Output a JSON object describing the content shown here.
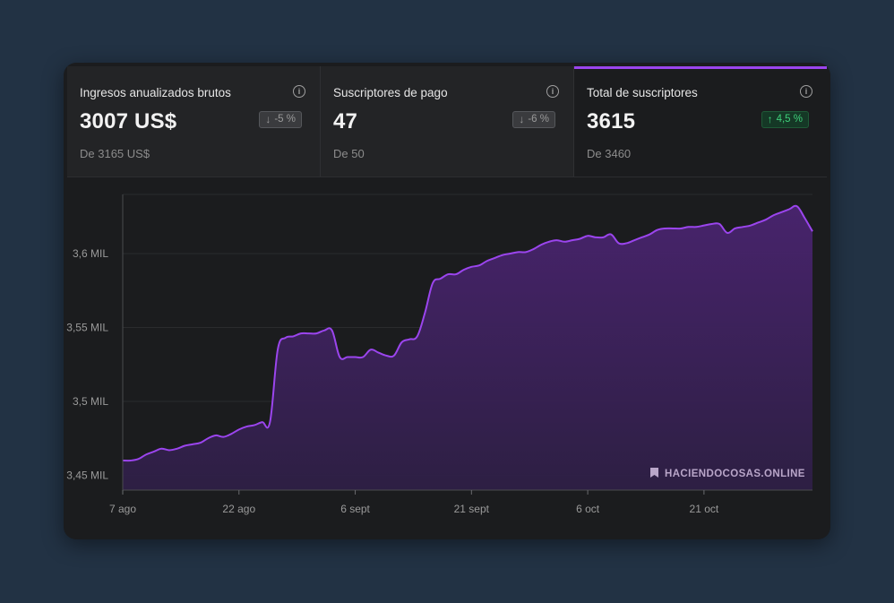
{
  "stats": [
    {
      "label": "Ingresos anualizados brutos",
      "value": "3007 US$",
      "change": "-5 %",
      "direction": "down",
      "sub": "De 3165 US$"
    },
    {
      "label": "Suscriptores de pago",
      "value": "47",
      "change": "-6 %",
      "direction": "down",
      "sub": "De 50"
    },
    {
      "label": "Total de suscriptores",
      "value": "3615",
      "change": "4,5 %",
      "direction": "up",
      "sub": "De 3460"
    }
  ],
  "watermark": "HACIENDOCOSAS.ONLINE",
  "colors": {
    "accent": "#9b45ee",
    "positive": "#3fcf7a",
    "background": "#223244"
  },
  "chart_data": {
    "type": "area",
    "title": "Total de suscriptores",
    "xlabel": "",
    "ylabel": "",
    "ylim": [
      3440,
      3640
    ],
    "xlim": [
      0,
      89
    ],
    "x_ticks": [
      {
        "x": 0,
        "label": "7 ago"
      },
      {
        "x": 15,
        "label": "22 ago"
      },
      {
        "x": 30,
        "label": "6 sept"
      },
      {
        "x": 45,
        "label": "21 sept"
      },
      {
        "x": 60,
        "label": "6 oct"
      },
      {
        "x": 75,
        "label": "21 oct"
      }
    ],
    "y_ticks": [
      {
        "y": 3450,
        "label": "3,45 MIL"
      },
      {
        "y": 3500,
        "label": "3,5 MIL"
      },
      {
        "y": 3550,
        "label": "3,55 MIL"
      },
      {
        "y": 3600,
        "label": "3,6 MIL"
      }
    ],
    "grid": true,
    "series": [
      {
        "name": "Total de suscriptores",
        "x": [
          0,
          1,
          2,
          3,
          4,
          5,
          6,
          7,
          8,
          9,
          10,
          11,
          12,
          13,
          14,
          15,
          16,
          17,
          18,
          19,
          20,
          21,
          22,
          23,
          24,
          25,
          26,
          27,
          28,
          29,
          30,
          31,
          32,
          33,
          34,
          35,
          36,
          37,
          38,
          39,
          40,
          41,
          42,
          43,
          44,
          45,
          46,
          47,
          48,
          49,
          50,
          51,
          52,
          53,
          54,
          55,
          56,
          57,
          58,
          59,
          60,
          61,
          62,
          63,
          64,
          65,
          66,
          67,
          68,
          69,
          70,
          71,
          72,
          73,
          74,
          75,
          76,
          77,
          78,
          79,
          80,
          81,
          82,
          83,
          84,
          85,
          86,
          87,
          88,
          89
        ],
        "values": [
          3460,
          3460,
          3461,
          3464,
          3466,
          3468,
          3467,
          3468,
          3470,
          3471,
          3472,
          3475,
          3477,
          3476,
          3478,
          3481,
          3483,
          3484,
          3486,
          3486,
          3535,
          3543,
          3544,
          3546,
          3546,
          3546,
          3548,
          3548,
          3530,
          3530,
          3530,
          3530,
          3535,
          3533,
          3531,
          3531,
          3540,
          3542,
          3544,
          3560,
          3580,
          3583,
          3586,
          3586,
          3589,
          3591,
          3592,
          3595,
          3597,
          3599,
          3600,
          3601,
          3601,
          3603,
          3606,
          3608,
          3609,
          3608,
          3609,
          3610,
          3612,
          3611,
          3611,
          3613,
          3607,
          3607,
          3609,
          3611,
          3613,
          3616,
          3617,
          3617,
          3617,
          3618,
          3618,
          3619,
          3620,
          3620,
          3614,
          3617,
          3618,
          3619,
          3621,
          3623,
          3626,
          3628,
          3630,
          3632,
          3624,
          3615
        ]
      }
    ]
  }
}
